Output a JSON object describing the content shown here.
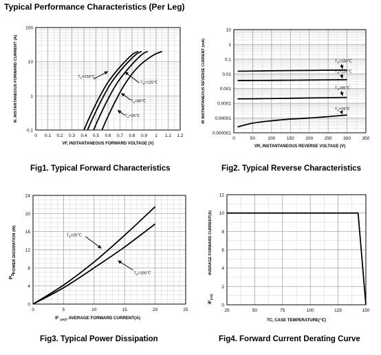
{
  "page": {
    "title": "Typical Performance Characteristics (Per Leg)"
  },
  "chart_data": [
    {
      "id": "fig1",
      "type": "line",
      "caption": "Fig1. Typical Forward Characteristics",
      "xlabel": "VF, INSTANTANEOUS FORWARD VOLTAGE  (V)",
      "ylabel": "IF, INSTANTANEOUS FORWARD CURRENT  (A)",
      "xlim": [
        0,
        1.2
      ],
      "ylim": [
        0.1,
        100
      ],
      "yscale": "log",
      "grid": true,
      "x_ticks": [
        "0",
        "0.1",
        "0.2",
        "0.3",
        "0.4",
        "0.5",
        "0.6",
        "0.7",
        "0.8",
        "0.9",
        "1",
        "1.1",
        "1.2"
      ],
      "y_ticks": [
        "0.1",
        "1",
        "10",
        "100"
      ],
      "series": [
        {
          "name": "TA=150℃",
          "points": [
            [
              0.4,
              0.1
            ],
            [
              0.45,
              0.25
            ],
            [
              0.52,
              0.8
            ],
            [
              0.6,
              2.5
            ],
            [
              0.7,
              7
            ],
            [
              0.8,
              16
            ],
            [
              0.85,
              20
            ]
          ]
        },
        {
          "name": "TA=125℃",
          "points": [
            [
              0.43,
              0.1
            ],
            [
              0.48,
              0.25
            ],
            [
              0.55,
              0.8
            ],
            [
              0.63,
              2.5
            ],
            [
              0.73,
              7
            ],
            [
              0.83,
              16
            ],
            [
              0.88,
              20
            ]
          ]
        },
        {
          "name": "TA=85℃",
          "points": [
            [
              0.48,
              0.1
            ],
            [
              0.53,
              0.25
            ],
            [
              0.6,
              0.8
            ],
            [
              0.68,
              2.5
            ],
            [
              0.78,
              7
            ],
            [
              0.88,
              16
            ],
            [
              0.93,
              20
            ]
          ]
        },
        {
          "name": "TA=25℃",
          "points": [
            [
              0.55,
              0.1
            ],
            [
              0.6,
              0.25
            ],
            [
              0.67,
              0.8
            ],
            [
              0.75,
              2.5
            ],
            [
              0.85,
              7
            ],
            [
              0.97,
              15
            ],
            [
              1.05,
              20
            ]
          ]
        }
      ],
      "annotations": [
        {
          "text": "TA=150℃",
          "x": 0.35,
          "y": 3.4
        },
        {
          "text": "TA=125℃",
          "x": 0.87,
          "y": 2.3
        },
        {
          "text": "TA=85℃",
          "x": 0.79,
          "y": 0.65
        },
        {
          "text": "TA=25℃",
          "x": 0.74,
          "y": 0.24
        }
      ]
    },
    {
      "id": "fig2",
      "type": "line",
      "caption": "Fig2. Typical Reverse Characteristics",
      "xlabel": "VR, INSTANTANEOUS REVERSE VOLTAGE  (V)",
      "ylabel": "IR INSTANTANEOUS REVERSE CURRENT  (mA)",
      "xlim": [
        0,
        350
      ],
      "ylim": [
        1e-06,
        10
      ],
      "yscale": "log",
      "grid": true,
      "x_ticks": [
        "0",
        "50",
        "100",
        "150",
        "200",
        "250",
        "300",
        "350"
      ],
      "y_ticks": [
        "0.000001",
        "0.00001",
        "0.0001",
        "0.001",
        "0.01",
        "0.1",
        "1",
        "10"
      ],
      "series": [
        {
          "name": "TA=150℃",
          "points": [
            [
              10,
              0.015
            ],
            [
              100,
              0.016
            ],
            [
              200,
              0.017
            ],
            [
              300,
              0.018
            ]
          ]
        },
        {
          "name": "TA=125℃",
          "points": [
            [
              10,
              0.0035
            ],
            [
              100,
              0.0036
            ],
            [
              200,
              0.0038
            ],
            [
              300,
              0.004
            ]
          ]
        },
        {
          "name": "TA=85℃",
          "points": [
            [
              10,
              0.0002
            ],
            [
              100,
              0.00021
            ],
            [
              200,
              0.00023
            ],
            [
              300,
              0.00025
            ]
          ]
        },
        {
          "name": "TA=25℃",
          "points": [
            [
              10,
              2.5e-06
            ],
            [
              50,
              4.5e-06
            ],
            [
              100,
              6.5e-06
            ],
            [
              150,
              8.5e-06
            ],
            [
              200,
              1e-05
            ],
            [
              250,
              1.25e-05
            ],
            [
              300,
              1.6e-05
            ]
          ]
        }
      ],
      "annotations": [
        {
          "text": "TA=150℃",
          "x": 268,
          "y": 0.06
        },
        {
          "text": "TA=125℃",
          "x": 268,
          "y": 0.012
        },
        {
          "text": "TA=85℃",
          "x": 268,
          "y": 0.0009
        },
        {
          "text": "TA=25℃",
          "x": 268,
          "y": 3.5e-05
        }
      ]
    },
    {
      "id": "fig3",
      "type": "line",
      "caption": "Fig3. Typical Power Dissipation",
      "xlabel_prefix": "IF",
      "xlabel_sub": "(AV)",
      "xlabel": ",   AVERAGE FORWARD CURRENT(A)",
      "ylabel": "POWER DISSIPATION  (W)",
      "ysymbol": "P",
      "ysymbol_sub": "D",
      "xlim": [
        0,
        25
      ],
      "ylim": [
        0,
        24
      ],
      "grid": true,
      "x_ticks": [
        "0",
        "5",
        "10",
        "15",
        "20",
        "25"
      ],
      "y_ticks": [
        "0",
        "4",
        "8",
        "12",
        "16",
        "20",
        "24"
      ],
      "series": [
        {
          "name": "TA=25℃",
          "points": [
            [
              0,
              0
            ],
            [
              5,
              4.2
            ],
            [
              10,
              9.3
            ],
            [
              15,
              15.2
            ],
            [
              20,
              21.5
            ]
          ]
        },
        {
          "name": "TA=150℃",
          "points": [
            [
              0,
              0
            ],
            [
              5,
              3.6
            ],
            [
              10,
              8.0
            ],
            [
              15,
              12.6
            ],
            [
              20,
              17.7
            ]
          ]
        }
      ],
      "annotations": [
        {
          "text": "TA=25℃",
          "x": 5.5,
          "y": 15.0
        },
        {
          "text": "TA=150℃",
          "x": 16.5,
          "y": 6.6
        }
      ]
    },
    {
      "id": "fig4",
      "type": "line",
      "caption": "Fig4. Forward Current Derating Curve",
      "xlabel_prefix": "TC,",
      "xlabel": "CASE TEMPERATURE(℃)",
      "ylabel": "AVERAGE FORWARD CURRENT(A)",
      "ysymbol": "IF",
      "ysymbol_sub": "(AV)",
      "xlim": [
        25,
        150
      ],
      "ylim": [
        0,
        12
      ],
      "grid": true,
      "x_ticks": [
        "25",
        "50",
        "75",
        "100",
        "125",
        "150"
      ],
      "y_ticks": [
        "0",
        "2",
        "4",
        "6",
        "8",
        "10",
        "12"
      ],
      "series": [
        {
          "name": "",
          "points": [
            [
              25,
              10
            ],
            [
              143,
              10
            ],
            [
              150,
              0
            ]
          ]
        }
      ],
      "annotations": []
    }
  ]
}
